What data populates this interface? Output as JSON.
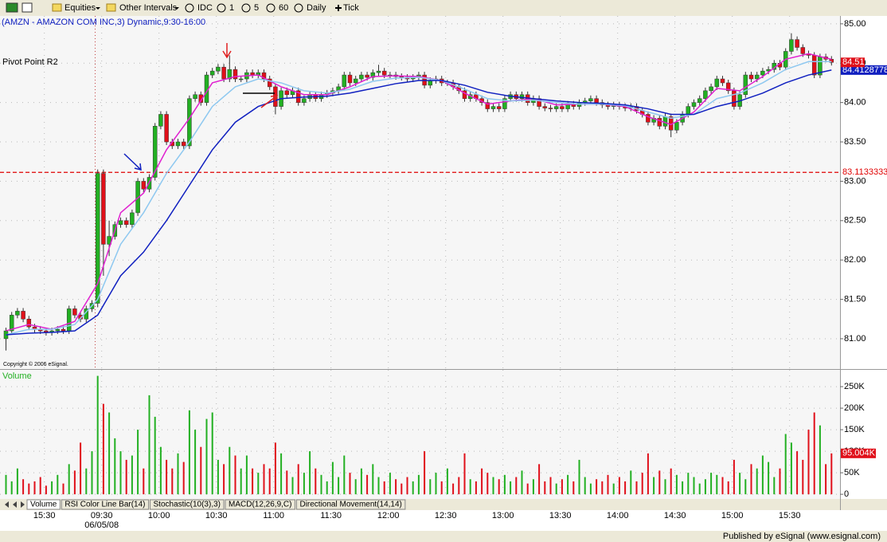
{
  "toolbar": {
    "items": [
      "Equities",
      "Other Intervals",
      "IDC",
      "1",
      "5",
      "60",
      "Daily",
      "Tick"
    ]
  },
  "chart_data": [
    {
      "type": "candlestick",
      "title": "(AMZN - AMAZON COM INC,3) Dynamic,9:30-16:00",
      "copyright": "Copyright © 2006 eSignal.",
      "up_color": "#22b022",
      "down_color": "#e0101a",
      "open": [
        81.0,
        81.1,
        81.3,
        81.35,
        81.25,
        81.15,
        81.12,
        81.1,
        81.08,
        81.1,
        81.12,
        81.1,
        81.38,
        81.3,
        81.25,
        81.38,
        81.45,
        83.1,
        82.2,
        82.3,
        82.45,
        82.5,
        82.45,
        82.6,
        83.0,
        82.9,
        83.05,
        83.7,
        83.85,
        83.5,
        83.45,
        83.5,
        83.45,
        84.05,
        84.1,
        84.0,
        84.35,
        84.4,
        84.45,
        84.3,
        84.42,
        84.3,
        84.3,
        84.38,
        84.35,
        84.38,
        84.3,
        84.2,
        83.95,
        84.15,
        84.1,
        84.15,
        84.0,
        84.05,
        84.1,
        84.05,
        84.1,
        84.12,
        84.15,
        84.2,
        84.35,
        84.25,
        84.3,
        84.35,
        84.32,
        84.38,
        84.4,
        84.35,
        84.35,
        84.33,
        84.32,
        84.3,
        84.32,
        84.35,
        84.22,
        84.28,
        84.3,
        84.25,
        84.25,
        84.2,
        84.15,
        84.05,
        84.1,
        84.05,
        84.0,
        83.92,
        83.95,
        83.92,
        84.05,
        84.1,
        84.05,
        84.1,
        84.0,
        84.05,
        83.95,
        83.93,
        83.92,
        83.95,
        83.92,
        83.98,
        83.95,
        84.0,
        84.02,
        84.05,
        84.0,
        83.97,
        83.95,
        83.97,
        83.95,
        83.93,
        83.95,
        83.9,
        83.85,
        83.75,
        83.8,
        83.7,
        83.82,
        83.65,
        83.75,
        83.85,
        83.95,
        84.0,
        84.05,
        84.15,
        84.2,
        84.3,
        84.25,
        84.15,
        83.95,
        84.1,
        84.35,
        84.3,
        84.35,
        84.4,
        84.42,
        84.5,
        84.45,
        84.65,
        84.8,
        84.7,
        84.62,
        84.6,
        84.35,
        84.58,
        84.55
      ],
      "high": [
        81.14,
        81.34,
        81.39,
        81.39,
        81.29,
        81.19,
        81.16,
        81.14,
        81.14,
        81.16,
        81.16,
        81.42,
        81.42,
        81.34,
        81.42,
        81.49,
        83.15,
        83.15,
        82.5,
        82.49,
        82.54,
        82.54,
        82.64,
        83.04,
        83.04,
        83.09,
        83.74,
        83.89,
        83.89,
        83.54,
        83.54,
        83.54,
        84.09,
        84.14,
        84.14,
        84.39,
        84.44,
        84.49,
        84.49,
        84.6,
        84.46,
        84.34,
        84.42,
        84.42,
        84.42,
        84.42,
        84.34,
        84.24,
        84.19,
        84.19,
        84.19,
        84.19,
        84.09,
        84.14,
        84.14,
        84.14,
        84.16,
        84.19,
        84.24,
        84.39,
        84.39,
        84.34,
        84.39,
        84.39,
        84.42,
        84.48,
        84.44,
        84.39,
        84.39,
        84.37,
        84.36,
        84.36,
        84.39,
        84.39,
        84.32,
        84.34,
        84.34,
        84.29,
        84.29,
        84.24,
        84.19,
        84.14,
        84.14,
        84.09,
        84.04,
        83.99,
        83.99,
        84.09,
        84.14,
        84.14,
        84.14,
        84.14,
        84.09,
        84.09,
        83.99,
        83.97,
        83.99,
        83.99,
        84.02,
        84.02,
        84.04,
        84.06,
        84.09,
        84.09,
        84.04,
        84.01,
        84.01,
        84.01,
        83.99,
        83.99,
        83.99,
        83.94,
        83.89,
        83.84,
        83.84,
        83.86,
        83.86,
        83.79,
        83.89,
        83.99,
        84.04,
        84.09,
        84.19,
        84.24,
        84.34,
        84.34,
        84.29,
        84.19,
        84.14,
        84.39,
        84.39,
        84.39,
        84.44,
        84.46,
        84.54,
        84.54,
        84.69,
        84.88,
        84.84,
        84.74,
        84.66,
        84.64,
        84.62,
        84.62,
        84.59
      ],
      "low": [
        80.85,
        81.06,
        81.26,
        81.21,
        81.11,
        81.08,
        81.06,
        81.04,
        81.04,
        81.06,
        81.06,
        81.06,
        81.26,
        81.21,
        81.21,
        81.34,
        81.4,
        81.8,
        82.05,
        82.26,
        82.41,
        82.41,
        82.41,
        82.56,
        82.86,
        82.86,
        83.01,
        83.66,
        83.46,
        83.41,
        83.41,
        83.41,
        83.41,
        84.01,
        83.96,
        83.96,
        84.31,
        84.36,
        84.26,
        84.26,
        84.26,
        84.26,
        84.26,
        84.31,
        84.31,
        84.26,
        84.16,
        83.85,
        83.91,
        84.06,
        84.06,
        83.96,
        83.96,
        84.01,
        84.01,
        84.01,
        84.06,
        84.08,
        84.11,
        84.16,
        84.21,
        84.21,
        84.26,
        84.28,
        84.28,
        84.34,
        84.31,
        84.31,
        84.29,
        84.28,
        84.26,
        84.26,
        84.28,
        84.18,
        84.18,
        84.24,
        84.21,
        84.21,
        84.16,
        84.11,
        84.01,
        84.01,
        84.01,
        83.96,
        83.88,
        83.88,
        83.88,
        83.88,
        84.01,
        84.01,
        84.01,
        83.96,
        83.96,
        83.91,
        83.89,
        83.88,
        83.88,
        83.88,
        83.88,
        83.91,
        83.91,
        83.96,
        83.98,
        83.96,
        83.93,
        83.91,
        83.91,
        83.91,
        83.89,
        83.89,
        83.86,
        83.81,
        83.71,
        83.71,
        83.66,
        83.66,
        83.56,
        83.61,
        83.71,
        83.81,
        83.91,
        83.96,
        84.01,
        84.11,
        84.16,
        84.21,
        84.11,
        83.91,
        83.91,
        84.06,
        84.26,
        84.26,
        84.31,
        84.36,
        84.38,
        84.41,
        84.41,
        84.61,
        84.66,
        84.58,
        84.56,
        84.31,
        84.31,
        84.51,
        84.47
      ],
      "close": [
        81.1,
        81.3,
        81.35,
        81.25,
        81.15,
        81.12,
        81.1,
        81.08,
        81.1,
        81.12,
        81.1,
        81.38,
        81.3,
        81.25,
        81.38,
        81.45,
        83.1,
        82.2,
        82.3,
        82.45,
        82.5,
        82.45,
        82.6,
        83.0,
        82.9,
        83.05,
        83.7,
        83.85,
        83.5,
        83.45,
        83.5,
        83.45,
        84.05,
        84.1,
        84.0,
        84.35,
        84.4,
        84.45,
        84.3,
        84.42,
        84.3,
        84.3,
        84.38,
        84.35,
        84.38,
        84.3,
        84.2,
        83.95,
        84.15,
        84.1,
        84.15,
        84.0,
        84.05,
        84.1,
        84.05,
        84.1,
        84.12,
        84.15,
        84.2,
        84.35,
        84.25,
        84.3,
        84.35,
        84.32,
        84.38,
        84.4,
        84.35,
        84.35,
        84.33,
        84.32,
        84.3,
        84.32,
        84.35,
        84.22,
        84.28,
        84.3,
        84.25,
        84.25,
        84.2,
        84.15,
        84.05,
        84.1,
        84.05,
        84.0,
        83.92,
        83.95,
        83.92,
        84.05,
        84.1,
        84.05,
        84.1,
        84.0,
        84.05,
        83.95,
        83.93,
        83.92,
        83.95,
        83.92,
        83.98,
        83.95,
        84.0,
        84.02,
        84.05,
        84.0,
        83.97,
        83.95,
        83.97,
        83.95,
        83.93,
        83.95,
        83.9,
        83.85,
        83.75,
        83.8,
        83.7,
        83.82,
        83.65,
        83.75,
        83.85,
        83.95,
        84.0,
        84.05,
        84.15,
        84.2,
        84.3,
        84.25,
        84.15,
        83.95,
        84.1,
        84.35,
        84.3,
        84.35,
        84.4,
        84.42,
        84.5,
        84.45,
        84.65,
        84.8,
        84.7,
        84.62,
        84.6,
        84.35,
        84.58,
        84.55,
        84.51
      ],
      "lines": {
        "x": [
          0,
          4,
          8,
          12,
          16,
          20,
          24,
          28,
          32,
          36,
          40,
          44,
          48,
          52,
          56,
          60,
          64,
          68,
          72,
          76,
          80,
          84,
          88,
          92,
          96,
          100,
          104,
          108,
          112,
          116,
          120,
          124,
          128,
          132,
          136,
          140,
          144
        ],
        "series": [
          {
            "color": "#e020d0",
            "values": [
              81.1,
              81.18,
              81.12,
              81.22,
              81.7,
              82.6,
              82.85,
              83.4,
              83.8,
              84.25,
              84.33,
              84.35,
              84.2,
              84.1,
              84.1,
              84.2,
              84.33,
              84.34,
              84.33,
              84.28,
              84.12,
              83.98,
              84.02,
              84.05,
              83.97,
              83.98,
              83.98,
              83.95,
              83.82,
              83.72,
              83.88,
              84.18,
              84.15,
              84.33,
              84.55,
              84.62,
              84.55
            ]
          },
          {
            "color": "#8ec8f0",
            "values": [
              81.05,
              81.12,
              81.12,
              81.18,
              81.5,
              82.2,
              82.6,
              83.1,
              83.5,
              83.95,
              84.2,
              84.3,
              84.25,
              84.15,
              84.12,
              84.17,
              84.27,
              84.31,
              84.32,
              84.28,
              84.17,
              84.05,
              84.02,
              84.03,
              84.0,
              83.98,
              83.98,
              83.96,
              83.88,
              83.8,
              83.85,
              84.05,
              84.12,
              84.25,
              84.42,
              84.52,
              84.52
            ]
          },
          {
            "color": "#1020c0",
            "values": [
              81.05,
              81.07,
              81.08,
              81.1,
              81.3,
              81.8,
              82.1,
              82.5,
              82.95,
              83.4,
              83.75,
              83.95,
              84.05,
              84.07,
              84.08,
              84.12,
              84.18,
              84.24,
              84.28,
              84.28,
              84.22,
              84.13,
              84.08,
              84.05,
              84.02,
              84.0,
              83.99,
              83.97,
              83.92,
              83.85,
              83.85,
              83.95,
              84.02,
              84.12,
              84.25,
              84.35,
              84.4128778
            ]
          }
        ]
      },
      "pivot": {
        "name": "Pivot Point R2",
        "value": 83.1133333,
        "color": "#e00000"
      },
      "ylim": [
        80.625,
        85.1
      ],
      "yticks": [
        {
          "value": 81,
          "label": "81.00"
        },
        {
          "value": 81.5,
          "label": "81.50"
        },
        {
          "value": 82,
          "label": "82.00"
        },
        {
          "value": 82.5,
          "label": "82.50"
        },
        {
          "value": 83,
          "label": "83.00"
        },
        {
          "value": 83.5,
          "label": "83.50"
        },
        {
          "value": 84,
          "label": "84.00"
        },
        {
          "value": 84.5,
          "label": "84.50"
        },
        {
          "value": 85,
          "label": "85.00"
        }
      ],
      "xticks": [
        {
          "value": 6,
          "label": "15:30"
        },
        {
          "value": 16,
          "label": "09:30"
        },
        {
          "value": 26,
          "label": "10:00"
        },
        {
          "value": 36,
          "label": "10:30"
        },
        {
          "value": 46,
          "label": "11:00"
        },
        {
          "value": 56,
          "label": "11:30"
        },
        {
          "value": 66,
          "label": "12:00"
        },
        {
          "value": 76,
          "label": "12:30"
        },
        {
          "value": 86,
          "label": "13:00"
        },
        {
          "value": 96,
          "label": "13:30"
        },
        {
          "value": 106,
          "label": "14:00"
        },
        {
          "value": 116,
          "label": "14:30"
        },
        {
          "value": 126,
          "label": "15:00"
        },
        {
          "value": 136,
          "label": "15:30"
        }
      ],
      "date_label": "06/05/08",
      "grid": true
    },
    {
      "type": "bar",
      "title": "Volume",
      "title_color": "#22b022",
      "values": [
        45000,
        30000,
        60000,
        35000,
        25000,
        30000,
        40000,
        20000,
        30000,
        45000,
        25000,
        70000,
        55000,
        120000,
        60000,
        100000,
        275000,
        210000,
        190000,
        130000,
        100000,
        80000,
        90000,
        150000,
        60000,
        230000,
        180000,
        110000,
        80000,
        60000,
        95000,
        75000,
        195000,
        150000,
        110000,
        175000,
        190000,
        80000,
        70000,
        110000,
        90000,
        60000,
        90000,
        60000,
        50000,
        70000,
        60000,
        120000,
        95000,
        55000,
        40000,
        70000,
        50000,
        100000,
        60000,
        45000,
        30000,
        75000,
        40000,
        90000,
        50000,
        35000,
        60000,
        45000,
        70000,
        40000,
        30000,
        50000,
        35000,
        25000,
        40000,
        30000,
        45000,
        100000,
        35000,
        50000,
        30000,
        60000,
        25000,
        40000,
        95000,
        35000,
        30000,
        60000,
        50000,
        40000,
        35000,
        45000,
        30000,
        40000,
        55000,
        25000,
        35000,
        70000,
        30000,
        40000,
        25000,
        35000,
        45000,
        30000,
        80000,
        40000,
        25000,
        35000,
        30000,
        45000,
        25000,
        40000,
        30000,
        55000,
        30000,
        50000,
        95000,
        40000,
        55000,
        35000,
        60000,
        45000,
        30000,
        50000,
        40000,
        25000,
        35000,
        50000,
        45000,
        40000,
        30000,
        80000,
        50000,
        35000,
        70000,
        60000,
        90000,
        75000,
        40000,
        60000,
        140000,
        120000,
        100000,
        80000,
        150000,
        190000,
        160000,
        70000,
        95004
      ],
      "last_value_label": "95.004K",
      "ylim": [
        -9000,
        289000
      ],
      "yticks": [
        0,
        {
          "value": 50000,
          "label": "50K"
        },
        {
          "value": 100000,
          "label": "100K"
        },
        {
          "value": 150000,
          "label": "150K"
        },
        {
          "value": 200000,
          "label": "200K"
        },
        {
          "value": 250000,
          "label": "250K"
        }
      ],
      "grid": true
    }
  ],
  "tabs": [
    "Volume",
    "RSI Color Line Bar(14)",
    "Stochastic(10(3),3)",
    "MACD(12,26,9,C)",
    "Directional Movement(14,14)"
  ],
  "status": "Published by eSignal (www.esignal.com)"
}
